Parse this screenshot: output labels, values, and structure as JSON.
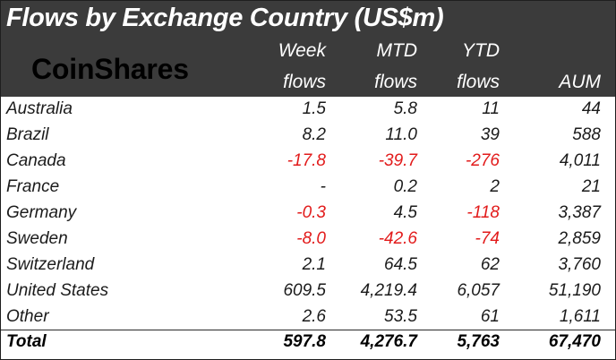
{
  "title": "Flows by Exchange Country (US$m)",
  "logo": "CoinShares",
  "colors": {
    "header_bg": "#3b3b3b",
    "negative": "#e21b1b",
    "text": "#1b1b1b"
  },
  "columns": [
    {
      "line1": "Week",
      "line2": "flows"
    },
    {
      "line1": "MTD",
      "line2": "flows"
    },
    {
      "line1": "YTD",
      "line2": "flows"
    },
    {
      "line1": "",
      "line2": "AUM"
    }
  ],
  "rows": [
    {
      "country": "Australia",
      "values": [
        "1.5",
        "5.8",
        "11",
        "44"
      ]
    },
    {
      "country": "Brazil",
      "values": [
        "8.2",
        "11.0",
        "39",
        "588"
      ]
    },
    {
      "country": "Canada",
      "values": [
        "-17.8",
        "-39.7",
        "-276",
        "4,011"
      ]
    },
    {
      "country": "France",
      "values": [
        "-",
        "0.2",
        "2",
        "21"
      ]
    },
    {
      "country": "Germany",
      "values": [
        "-0.3",
        "4.5",
        "-118",
        "3,387"
      ]
    },
    {
      "country": "Sweden",
      "values": [
        "-8.0",
        "-42.6",
        "-74",
        "2,859"
      ]
    },
    {
      "country": "Switzerland",
      "values": [
        "2.1",
        "64.5",
        "62",
        "3,760"
      ]
    },
    {
      "country": "United States",
      "values": [
        "609.5",
        "4,219.4",
        "6,057",
        "51,190"
      ]
    },
    {
      "country": "Other",
      "values": [
        "2.6",
        "53.5",
        "61",
        "1,611"
      ]
    }
  ],
  "total": {
    "label": "Total",
    "values": [
      "597.8",
      "4,276.7",
      "5,763",
      "67,470"
    ]
  }
}
